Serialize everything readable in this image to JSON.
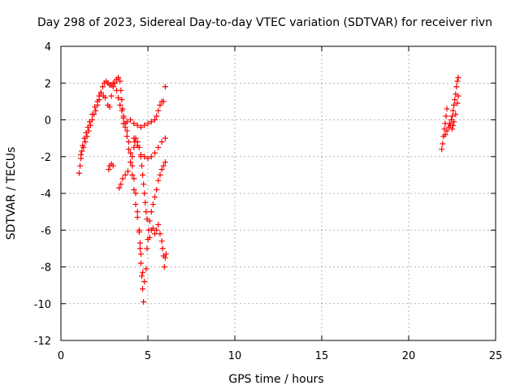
{
  "chart_data": {
    "type": "scatter",
    "title": "Day 298 of 2023, Sidereal Day-to-day VTEC variation (SDTVAR) for receiver rivn",
    "xlabel": "GPS time / hours",
    "ylabel": "SDTVAR / TECUs",
    "xlim": [
      0,
      25
    ],
    "ylim": [
      -12,
      4
    ],
    "xticks": [
      0,
      5,
      10,
      15,
      20,
      25
    ],
    "yticks": [
      -12,
      -10,
      -8,
      -6,
      -4,
      -2,
      0,
      2,
      4
    ],
    "grid": true,
    "marker": "+",
    "color": "#ff0000",
    "series": [
      {
        "points": [
          [
            1.05,
            -2.9
          ],
          [
            1.1,
            -2.5
          ],
          [
            1.15,
            -2.1
          ],
          [
            1.2,
            -1.7
          ],
          [
            1.3,
            -1.5
          ],
          [
            1.4,
            -1.2
          ],
          [
            1.5,
            -0.9
          ],
          [
            1.6,
            -0.6
          ],
          [
            1.7,
            -0.3
          ],
          [
            1.8,
            0.0
          ],
          [
            1.9,
            0.3
          ],
          [
            2.0,
            0.5
          ],
          [
            2.1,
            0.8
          ],
          [
            2.2,
            1.1
          ],
          [
            2.3,
            1.4
          ],
          [
            2.4,
            1.8
          ],
          [
            2.5,
            2.0
          ],
          [
            2.6,
            2.1
          ],
          [
            2.7,
            2.0
          ],
          [
            2.8,
            1.9
          ],
          [
            2.9,
            1.9
          ],
          [
            3.0,
            2.0
          ],
          [
            3.1,
            2.0
          ],
          [
            3.2,
            2.2
          ],
          [
            3.3,
            2.3
          ],
          [
            3.4,
            2.1
          ],
          [
            3.45,
            1.6
          ],
          [
            3.5,
            1.1
          ],
          [
            3.55,
            0.6
          ],
          [
            3.6,
            0.2
          ],
          [
            3.7,
            -0.2
          ],
          [
            3.8,
            -0.6
          ],
          [
            3.9,
            -1.2
          ],
          [
            4.0,
            -1.8
          ],
          [
            4.1,
            -2.5
          ],
          [
            4.2,
            -3.2
          ],
          [
            4.3,
            -4.0
          ],
          [
            4.4,
            -5.0
          ],
          [
            4.5,
            -6.0
          ],
          [
            4.55,
            -7.0
          ],
          [
            4.6,
            -7.8
          ],
          [
            4.65,
            -8.5
          ],
          [
            4.7,
            -9.2
          ],
          [
            4.75,
            -9.9
          ]
        ]
      },
      {
        "points": [
          [
            1.15,
            -1.9
          ],
          [
            1.25,
            -1.4
          ],
          [
            1.35,
            -1.0
          ],
          [
            1.45,
            -0.7
          ],
          [
            1.55,
            -0.4
          ],
          [
            1.65,
            -0.1
          ],
          [
            1.8,
            0.3
          ],
          [
            1.95,
            0.7
          ],
          [
            2.1,
            1.0
          ],
          [
            2.2,
            1.3
          ],
          [
            2.3,
            1.5
          ],
          [
            2.45,
            1.3
          ],
          [
            2.55,
            1.2
          ],
          [
            2.7,
            0.8
          ],
          [
            2.8,
            0.7
          ],
          [
            2.9,
            1.3
          ],
          [
            3.0,
            1.8
          ],
          [
            3.1,
            2.0
          ],
          [
            3.2,
            1.6
          ],
          [
            3.3,
            1.2
          ],
          [
            3.4,
            0.8
          ],
          [
            3.5,
            0.5
          ],
          [
            3.6,
            0.1
          ],
          [
            3.7,
            -0.4
          ],
          [
            3.8,
            -0.9
          ],
          [
            3.9,
            -1.6
          ],
          [
            4.0,
            -2.3
          ],
          [
            4.1,
            -3.0
          ],
          [
            4.2,
            -3.8
          ],
          [
            4.3,
            -4.6
          ],
          [
            4.4,
            -5.3
          ],
          [
            4.5,
            -6.1
          ],
          [
            4.55,
            -6.7
          ],
          [
            4.6,
            -7.3
          ],
          [
            4.7,
            -8.3
          ],
          [
            4.8,
            -8.8
          ],
          [
            4.9,
            -8.1
          ]
        ]
      },
      {
        "points": [
          [
            2.75,
            -2.7
          ],
          [
            2.8,
            -2.5
          ],
          [
            2.9,
            -2.4
          ],
          [
            3.0,
            -2.5
          ],
          [
            3.35,
            -3.7
          ],
          [
            3.45,
            -3.5
          ],
          [
            3.55,
            -3.2
          ],
          [
            3.7,
            -3.0
          ],
          [
            3.85,
            -2.8
          ],
          [
            4.0,
            -2.3
          ],
          [
            4.1,
            -2.0
          ],
          [
            4.2,
            -1.5
          ],
          [
            4.25,
            -1.2
          ],
          [
            4.3,
            -1.0
          ],
          [
            4.4,
            -1.2
          ],
          [
            4.5,
            -1.5
          ],
          [
            4.6,
            -2.0
          ],
          [
            4.65,
            -2.5
          ],
          [
            4.7,
            -3.0
          ],
          [
            4.75,
            -3.5
          ],
          [
            4.8,
            -4.0
          ],
          [
            4.85,
            -4.5
          ],
          [
            4.9,
            -5.0
          ],
          [
            4.95,
            -5.4
          ]
        ]
      },
      {
        "points": [
          [
            3.6,
            -0.2
          ],
          [
            3.8,
            -0.1
          ],
          [
            4.0,
            0.0
          ],
          [
            4.2,
            -0.2
          ],
          [
            4.4,
            -0.3
          ],
          [
            4.6,
            -0.4
          ],
          [
            4.8,
            -0.3
          ],
          [
            5.0,
            -0.2
          ],
          [
            5.2,
            -0.1
          ],
          [
            5.4,
            0.0
          ],
          [
            5.5,
            0.2
          ],
          [
            5.6,
            0.5
          ],
          [
            5.7,
            0.8
          ],
          [
            5.8,
            1.0
          ],
          [
            5.9,
            1.0
          ],
          [
            6.0,
            1.8
          ]
        ]
      },
      {
        "points": [
          [
            4.2,
            -1.0
          ],
          [
            4.4,
            -1.4
          ],
          [
            4.6,
            -1.9
          ],
          [
            4.8,
            -2.0
          ],
          [
            5.0,
            -2.1
          ],
          [
            5.2,
            -2.0
          ],
          [
            5.4,
            -1.8
          ],
          [
            5.6,
            -1.5
          ],
          [
            5.8,
            -1.2
          ],
          [
            6.0,
            -1.0
          ]
        ]
      },
      {
        "points": [
          [
            4.95,
            -7.0
          ],
          [
            5.0,
            -6.5
          ],
          [
            5.05,
            -6.0
          ],
          [
            5.1,
            -5.5
          ],
          [
            5.2,
            -5.0
          ],
          [
            5.3,
            -4.6
          ],
          [
            5.4,
            -4.2
          ],
          [
            5.5,
            -3.8
          ],
          [
            5.6,
            -3.3
          ],
          [
            5.7,
            -3.0
          ],
          [
            5.8,
            -2.7
          ],
          [
            5.9,
            -2.5
          ],
          [
            6.0,
            -2.3
          ]
        ]
      },
      {
        "points": [
          [
            5.1,
            -6.4
          ],
          [
            5.2,
            -6.0
          ],
          [
            5.3,
            -5.9
          ],
          [
            5.4,
            -6.2
          ],
          [
            5.5,
            -6.0
          ],
          [
            5.6,
            -5.7
          ],
          [
            5.7,
            -6.2
          ],
          [
            5.8,
            -6.6
          ],
          [
            5.85,
            -7.0
          ],
          [
            5.9,
            -7.4
          ],
          [
            5.95,
            -8.0
          ],
          [
            6.0,
            -7.5
          ],
          [
            6.05,
            -7.3
          ]
        ]
      },
      {
        "points": [
          [
            21.9,
            -1.6
          ],
          [
            21.95,
            -1.3
          ],
          [
            22.0,
            -0.9
          ],
          [
            22.05,
            -0.5
          ],
          [
            22.1,
            -0.2
          ],
          [
            22.15,
            0.2
          ],
          [
            22.2,
            0.6
          ],
          [
            22.1,
            -0.8
          ],
          [
            22.2,
            -0.6
          ],
          [
            22.3,
            -0.4
          ],
          [
            22.35,
            -0.2
          ],
          [
            22.4,
            -0.3
          ],
          [
            22.45,
            0.0
          ],
          [
            22.5,
            0.2
          ],
          [
            22.55,
            0.5
          ],
          [
            22.6,
            0.8
          ],
          [
            22.65,
            1.1
          ],
          [
            22.7,
            1.4
          ],
          [
            22.75,
            1.8
          ],
          [
            22.8,
            2.1
          ],
          [
            22.85,
            2.3
          ],
          [
            22.5,
            -0.5
          ],
          [
            22.55,
            -0.3
          ],
          [
            22.6,
            -0.1
          ],
          [
            22.7,
            0.3
          ],
          [
            22.8,
            0.9
          ],
          [
            22.85,
            1.3
          ]
        ]
      }
    ]
  }
}
